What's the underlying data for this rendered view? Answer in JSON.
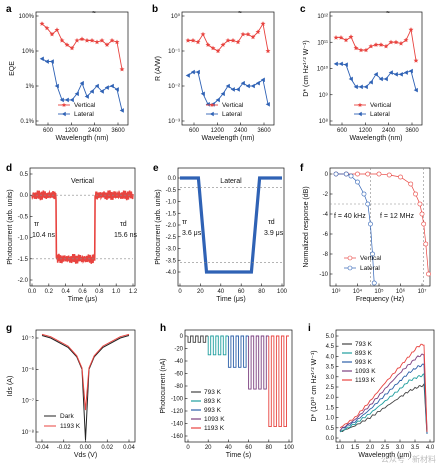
{
  "figure": {
    "panel_labels": [
      "a",
      "b",
      "c",
      "d",
      "e",
      "f",
      "g",
      "h",
      "i"
    ],
    "panel_a": {
      "ylabel": "EQE",
      "xlabel": "Wavelength (nm)",
      "yticks": [
        "100%",
        "10%",
        "1%",
        "0.1%"
      ],
      "xticks": [
        "600",
        "1200",
        "2400",
        "3600"
      ],
      "legend": [
        "Vertical",
        "Lateral"
      ]
    },
    "panel_b": {
      "ylabel": "R (A/W)",
      "xlabel": "Wavelength (nm)",
      "yticks": [
        "10⁰",
        "10⁻¹",
        "10⁻²",
        "10⁻³"
      ],
      "xticks": [
        "600",
        "1200",
        "2400",
        "3600"
      ],
      "legend": [
        "Vertical",
        "Lateral"
      ]
    },
    "panel_c": {
      "ylabel": "D* (cm Hz¹ᐟ² W⁻¹)",
      "xlabel": "Wavelength (nm)",
      "yticks": [
        "10¹²",
        "10¹¹",
        "10¹⁰",
        "10⁹",
        "10⁸"
      ],
      "xticks": [
        "600",
        "1200",
        "2400",
        "3600"
      ],
      "legend": [
        "Vertical",
        "Lateral"
      ]
    },
    "panel_d": {
      "ylabel": "Photocurrent (arb. units)",
      "xlabel": "Time (μs)",
      "title": "Vertical",
      "tau_r_label": "τr",
      "tau_r": "10.4 ns",
      "tau_d_label": "τd",
      "tau_d": "15.6 ns",
      "yticks": [
        "0.5",
        "0.0",
        "-0.5",
        "-1.0",
        "-1.5",
        "-2.0"
      ],
      "xticks": [
        "0.0",
        "0.2",
        "0.4",
        "0.6",
        "0.8",
        "1.0",
        "1.2"
      ]
    },
    "panel_e": {
      "ylabel": "Photocurrent (arb. units)",
      "xlabel": "Time (μs)",
      "title": "Lateral",
      "tau_r_label": "τr",
      "tau_r": "3.6 μs",
      "tau_d_label": "τd",
      "tau_d": "3.9 μs",
      "yticks": [
        "0.0",
        "-0.5",
        "-1.0",
        "-1.5",
        "-2.0",
        "-2.5",
        "-3.0",
        "-3.5",
        "-4.0"
      ],
      "xticks": [
        "0",
        "20",
        "40",
        "60",
        "80",
        "100"
      ]
    },
    "panel_f": {
      "ylabel": "Normalized response (dB)",
      "xlabel": "Frequency (Hz)",
      "f1": "f = 40 kHz",
      "f2": "f = 12 MHz",
      "yticks": [
        "0",
        "-2",
        "-4",
        "-6",
        "-8",
        "-10"
      ],
      "xticks": [
        "10³",
        "10⁴",
        "10⁵",
        "10⁶",
        "10⁷"
      ],
      "legend": [
        "Vertical",
        "Lateral"
      ]
    },
    "panel_g": {
      "ylabel": "Ids (A)",
      "xlabel": "Vds (V)",
      "yticks": [
        "10⁻⁵",
        "10⁻⁶",
        "10⁻⁷",
        "10⁻⁸"
      ],
      "xticks": [
        "-0.04",
        "-0.02",
        "0.00",
        "0.02",
        "0.04"
      ],
      "legend": [
        "Dark",
        "1193 K"
      ]
    },
    "panel_h": {
      "ylabel": "Photocurrent (nA)",
      "xlabel": "Time (s)",
      "yticks": [
        "0",
        "-20",
        "-40",
        "-60",
        "-80",
        "-100",
        "-120",
        "-140",
        "-160"
      ],
      "xticks": [
        "0",
        "20",
        "40",
        "60",
        "80",
        "100"
      ],
      "legend": [
        "793 K",
        "893 K",
        "993 K",
        "1093 K",
        "1193 K"
      ]
    },
    "panel_i": {
      "ylabel": "D* (10¹⁰ cm Hz¹ᐟ² W⁻¹)",
      "xlabel": "Wavelength (μm)",
      "yticks": [
        "0.0",
        "0.5",
        "1.0",
        "1.5",
        "2.0",
        "2.5",
        "3.0",
        "3.5",
        "4.0",
        "4.5",
        "5.0"
      ],
      "xticks": [
        "1.0",
        "1.5",
        "2.0",
        "2.5",
        "3.0",
        "3.5",
        "4.0"
      ],
      "legend": [
        "793 K",
        "893 K",
        "993 K",
        "1093 K",
        "1193 K"
      ]
    },
    "watermark": "公众号 · 新材料"
  },
  "colors": {
    "vertical": "#e8433f",
    "lateral": "#2f62b5",
    "h1": "#444444",
    "h2": "#1f9e9e",
    "h3": "#2b5fa8",
    "h4": "#7b3f7f",
    "h5": "#e8433f"
  },
  "chart_data": [
    {
      "type": "scatter",
      "panel": "a",
      "x": [
        500,
        600,
        700,
        800,
        900,
        1000,
        1200,
        1400,
        1600,
        1800,
        2000,
        2400,
        2800,
        3000,
        3200,
        3600,
        4000
      ],
      "series": [
        {
          "name": "Vertical",
          "values": [
            60,
            45,
            30,
            40,
            20,
            15,
            12,
            20,
            22,
            20,
            20,
            18,
            20,
            15,
            20,
            18,
            3
          ]
        },
        {
          "name": "Lateral",
          "values": [
            6,
            5,
            5,
            1,
            0.4,
            0.4,
            0.4,
            0.6,
            1.2,
            0.5,
            0.7,
            1.0,
            0.7,
            0.9,
            1.0,
            0.8,
            0.2
          ]
        }
      ]
    },
    {
      "type": "scatter",
      "panel": "b",
      "x": [
        500,
        600,
        700,
        800,
        900,
        1000,
        1200,
        1400,
        1600,
        1800,
        2000,
        2400,
        2800,
        3000,
        3200,
        3600,
        4000
      ],
      "series": [
        {
          "name": "Vertical",
          "values": [
            0.2,
            0.2,
            0.18,
            0.3,
            0.15,
            0.12,
            0.1,
            0.15,
            0.2,
            0.2,
            0.18,
            0.3,
            0.3,
            0.25,
            0.35,
            0.6,
            0.1
          ]
        },
        {
          "name": "Lateral",
          "values": [
            0.02,
            0.025,
            0.025,
            0.006,
            0.003,
            0.003,
            0.004,
            0.006,
            0.01,
            0.008,
            0.008,
            0.012,
            0.01,
            0.01,
            0.012,
            0.015,
            0.003
          ]
        }
      ]
    },
    {
      "type": "scatter",
      "panel": "c",
      "x": [
        500,
        600,
        700,
        800,
        900,
        1000,
        1200,
        1400,
        1600,
        1800,
        2000,
        2400,
        2800,
        3000,
        3200,
        3600,
        4000
      ],
      "series": [
        {
          "name": "Vertical",
          "values": [
            150000000000.0,
            150000000000.0,
            120000000000.0,
            160000000000.0,
            60000000000.0,
            50000000000.0,
            50000000000.0,
            70000000000.0,
            80000000000.0,
            80000000000.0,
            70000000000.0,
            100000000000.0,
            100000000000.0,
            90000000000.0,
            120000000000.0,
            300000000000.0,
            20000000000.0
          ]
        },
        {
          "name": "Lateral",
          "values": [
            15000000000.0,
            15000000000.0,
            14000000000.0,
            4000000000.0,
            2000000000.0,
            2000000000.0,
            2000000000.0,
            3000000000.0,
            6000000000.0,
            4000000000.0,
            4000000000.0,
            7000000000.0,
            6000000000.0,
            6000000000.0,
            7000000000.0,
            8000000000.0,
            1500000000.0
          ]
        }
      ]
    },
    {
      "type": "line",
      "panel": "d",
      "title": "Vertical",
      "x": [
        0,
        0.28,
        0.3,
        0.74,
        0.76,
        1.2
      ],
      "series": [
        {
          "name": "Vertical",
          "values": [
            0,
            0,
            -1.5,
            -1.5,
            0,
            0
          ]
        }
      ],
      "xlim": [
        0,
        1.2
      ],
      "ylim": [
        -2.0,
        0.5
      ]
    },
    {
      "type": "line",
      "panel": "e",
      "title": "Lateral",
      "x": [
        0,
        18,
        26,
        70,
        78,
        100
      ],
      "series": [
        {
          "name": "Lateral",
          "values": [
            0,
            0,
            -4,
            -4,
            0,
            0
          ]
        }
      ],
      "xlim": [
        0,
        100
      ],
      "ylim": [
        -4.3,
        0.3
      ]
    },
    {
      "type": "scatter",
      "panel": "f",
      "series": [
        {
          "name": "Vertical",
          "x": [
            1000,
            3000,
            10000,
            30000,
            100000,
            300000,
            1000000,
            3000000,
            5000000,
            8000000,
            10000000,
            12000000,
            15000000,
            20000000
          ],
          "values": [
            0,
            0,
            0,
            0,
            0,
            -0.1,
            -0.3,
            -1,
            -2,
            -3,
            -4,
            -5,
            -7,
            -10
          ]
        },
        {
          "name": "Lateral",
          "x": [
            1000,
            3000,
            5000,
            10000,
            20000,
            30000,
            40000,
            50000,
            60000
          ],
          "values": [
            0,
            0,
            -0.2,
            -0.8,
            -2,
            -3,
            -5,
            -8,
            -16
          ]
        }
      ],
      "xlim": [
        1000,
        20000000
      ],
      "ylim": [
        -16,
        0.5
      ]
    },
    {
      "type": "line",
      "panel": "g",
      "x": [
        -0.05,
        -0.04,
        -0.02,
        -0.01,
        -0.004,
        0,
        0.004,
        0.01,
        0.02,
        0.04,
        0.05
      ],
      "series": [
        {
          "name": "Dark",
          "values": [
            1.2e-05,
            1e-05,
            5e-06,
            2.5e-06,
            1e-06,
            5e-09,
            1e-06,
            2.5e-06,
            5e-06,
            1e-05,
            1.2e-05
          ]
        },
        {
          "name": "1193 K",
          "values": [
            1.3e-05,
            1.1e-05,
            5.5e-06,
            2.7e-06,
            1.1e-06,
            5e-08,
            1.1e-06,
            2.7e-06,
            5.5e-06,
            1.1e-05,
            1.3e-05
          ]
        }
      ]
    },
    {
      "type": "line",
      "panel": "h",
      "x": [
        0,
        100
      ],
      "series": [
        {
          "name": "793 K",
          "on_value": -10
        },
        {
          "name": "893 K",
          "on_value": -30
        },
        {
          "name": "993 K",
          "on_value": -50
        },
        {
          "name": "1093 K",
          "on_value": -85
        },
        {
          "name": "1193 K",
          "on_value": -145
        }
      ],
      "ylim": [
        -160,
        0
      ]
    },
    {
      "type": "line",
      "panel": "i",
      "x": [
        1.0,
        1.5,
        2.0,
        2.5,
        3.0,
        3.3,
        3.6,
        3.8,
        3.9
      ],
      "series": [
        {
          "name": "793 K",
          "values": [
            0.3,
            0.6,
            1.0,
            1.5,
            2.0,
            2.3,
            2.5,
            2.6,
            0.2
          ]
        },
        {
          "name": "893 K",
          "values": [
            0.3,
            0.7,
            1.2,
            1.8,
            2.4,
            2.8,
            3.0,
            3.1,
            0.2
          ]
        },
        {
          "name": "993 K",
          "values": [
            0.4,
            0.8,
            1.4,
            2.1,
            2.8,
            3.2,
            3.5,
            3.6,
            0.2
          ]
        },
        {
          "name": "1093 K",
          "values": [
            0.4,
            0.9,
            1.6,
            2.4,
            3.2,
            3.6,
            4.0,
            4.1,
            0.3
          ]
        },
        {
          "name": "1193 K",
          "values": [
            0.5,
            1.0,
            1.8,
            2.7,
            3.5,
            4.0,
            4.5,
            4.6,
            0.3
          ]
        }
      ],
      "ylim": [
        0,
        5
      ]
    }
  ]
}
